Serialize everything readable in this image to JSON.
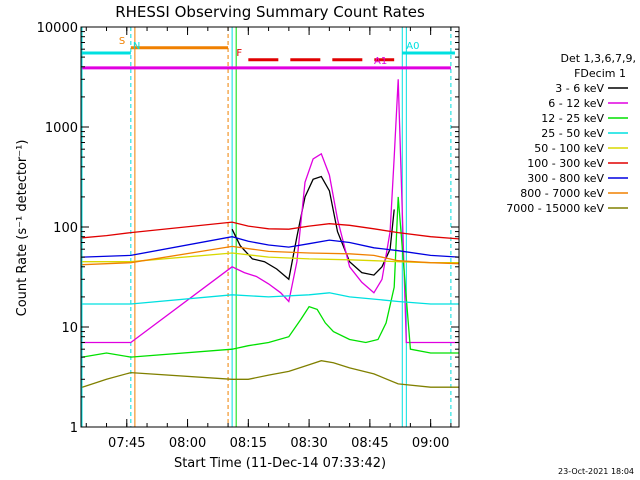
{
  "chart_data": {
    "type": "line",
    "title": "RHESSI Observing Summary Count Rates",
    "xlabel": "Start Time (11-Dec-14 07:33:42)",
    "ylabel": "Count Rate (s⁻¹ detector⁻¹)",
    "y_scale": "log",
    "ylim": [
      1,
      10000
    ],
    "xlim": [
      "07:33:42",
      "09:07:00"
    ],
    "x_ticks": [
      "07:45",
      "08:00",
      "08:15",
      "08:30",
      "08:45",
      "09:00"
    ],
    "y_ticks": [
      "1",
      "10",
      "100",
      "1000",
      "10000"
    ],
    "grid": false,
    "legend": {
      "placement": "right",
      "header": [
        "Det 1,3,6,7,9,",
        "FDecim 1"
      ]
    },
    "series": [
      {
        "name": "3 - 6 keV",
        "color": "#000000",
        "x": [
          "08:11",
          "08:13",
          "08:16",
          "08:19",
          "08:22",
          "08:25",
          "08:27",
          "08:29",
          "08:31",
          "08:33",
          "08:35",
          "08:37",
          "08:40",
          "08:43",
          "08:46",
          "08:48",
          "08:50",
          "08:51"
        ],
        "y": [
          95,
          65,
          48,
          45,
          38,
          30,
          80,
          200,
          300,
          320,
          230,
          90,
          45,
          35,
          33,
          40,
          60,
          150
        ]
      },
      {
        "name": "6 - 12 keV",
        "color": "#e000e0",
        "x": [
          "07:34",
          "07:40",
          "07:46",
          "08:11",
          "08:14",
          "08:17",
          "08:20",
          "08:23",
          "08:25",
          "08:27",
          "08:29",
          "08:31",
          "08:33",
          "08:35",
          "08:37",
          "08:40",
          "08:43",
          "08:46",
          "08:48",
          "08:50",
          "08:51",
          "08:52",
          "08:54",
          "08:58",
          "09:02",
          "09:07"
        ],
        "y": [
          7,
          7,
          7,
          40,
          35,
          32,
          27,
          22,
          18,
          45,
          280,
          480,
          540,
          330,
          120,
          40,
          28,
          22,
          30,
          90,
          500,
          3000,
          7,
          7,
          7,
          7
        ]
      },
      {
        "name": "12 - 25 keV",
        "color": "#00e000",
        "x": [
          "07:34",
          "07:40",
          "07:46",
          "08:11",
          "08:15",
          "08:20",
          "08:25",
          "08:28",
          "08:30",
          "08:32",
          "08:34",
          "08:36",
          "08:40",
          "08:44",
          "08:47",
          "08:49",
          "08:51",
          "08:52",
          "08:55",
          "09:00",
          "09:07"
        ],
        "y": [
          5,
          5.5,
          5,
          6,
          6.5,
          7,
          8,
          12,
          16,
          15,
          11,
          9,
          7.5,
          7,
          7.5,
          11,
          25,
          200,
          6,
          5.5,
          5.5
        ]
      },
      {
        "name": "25 - 50 keV",
        "color": "#00e0e0",
        "x": [
          "07:34",
          "07:40",
          "07:46",
          "08:11",
          "08:20",
          "08:30",
          "08:35",
          "08:40",
          "08:46",
          "08:52",
          "09:00",
          "09:07"
        ],
        "y": [
          17,
          17,
          17,
          21,
          20,
          21,
          22,
          20,
          19,
          18,
          17,
          17
        ]
      },
      {
        "name": "50 - 100 keV",
        "color": "#d8d800",
        "x": [
          "07:34",
          "07:46",
          "08:11",
          "08:20",
          "08:30",
          "08:40",
          "08:46",
          "08:52",
          "09:00",
          "09:07"
        ],
        "y": [
          45,
          45,
          55,
          50,
          48,
          47,
          46,
          45,
          44,
          44
        ]
      },
      {
        "name": "100 - 300 keV",
        "color": "#e00000",
        "x": [
          "07:34",
          "07:40",
          "07:46",
          "08:11",
          "08:15",
          "08:20",
          "08:25",
          "08:30",
          "08:35",
          "08:40",
          "08:46",
          "08:52",
          "09:00",
          "09:07"
        ],
        "y": [
          78,
          82,
          88,
          112,
          102,
          96,
          95,
          102,
          108,
          104,
          96,
          88,
          80,
          76
        ]
      },
      {
        "name": "300 - 800 keV",
        "color": "#0000e0",
        "x": [
          "07:34",
          "07:46",
          "08:11",
          "08:15",
          "08:20",
          "08:25",
          "08:30",
          "08:35",
          "08:40",
          "08:46",
          "08:52",
          "09:00",
          "09:07"
        ],
        "y": [
          50,
          52,
          80,
          72,
          66,
          63,
          68,
          74,
          70,
          62,
          58,
          52,
          50
        ]
      },
      {
        "name": "800 - 7000 keV",
        "color": "#f08000",
        "x": [
          "07:34",
          "07:46",
          "08:11",
          "08:20",
          "08:30",
          "08:40",
          "08:46",
          "08:52",
          "09:00",
          "09:07"
        ],
        "y": [
          42,
          44,
          64,
          57,
          55,
          54,
          52,
          46,
          44,
          43
        ]
      },
      {
        "name": "7000 - 15000 keV",
        "color": "#808000",
        "x": [
          "07:34",
          "07:40",
          "07:46",
          "08:11",
          "08:15",
          "08:20",
          "08:25",
          "08:30",
          "08:33",
          "08:36",
          "08:40",
          "08:46",
          "08:52",
          "09:00",
          "09:07"
        ],
        "y": [
          2.5,
          3,
          3.5,
          3,
          3,
          3.3,
          3.6,
          4.2,
          4.6,
          4.4,
          3.9,
          3.4,
          2.7,
          2.5,
          2.5
        ]
      }
    ],
    "annotations": [
      {
        "label": "S",
        "color": "#f08000",
        "y": 6200,
        "x_start": "07:46",
        "x_end": "08:10"
      },
      {
        "label": "N",
        "color": "#00e0e0",
        "y": 5500,
        "x_start": "07:34",
        "x_end": "07:46"
      },
      {
        "label": "F",
        "color": "#e00000",
        "y": 4700,
        "x_start": "08:15",
        "x_end": "08:51"
      },
      {
        "label": "A0",
        "color": "#00e0e0",
        "y": 5500,
        "x_start": "08:53",
        "x_end": "09:06"
      },
      {
        "label": "A1",
        "color": "#e000e0",
        "y": 3900,
        "x_start": "07:34",
        "x_end": "09:05"
      }
    ],
    "footer": "23-Oct-2021 18:04"
  }
}
